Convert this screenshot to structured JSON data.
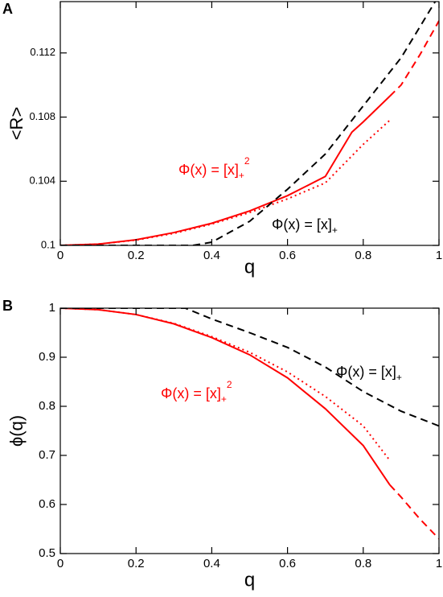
{
  "chart_data": [
    {
      "type": "line",
      "panel_label": "A",
      "x_label": "q",
      "y_label": "<R>",
      "xlim": [
        0,
        1
      ],
      "xticks": [
        0,
        0.2,
        0.4,
        0.6,
        0.8,
        1
      ],
      "ylim": [
        0.1,
        0.1152
      ],
      "yticks": [
        0.1,
        0.104,
        0.108,
        0.112
      ],
      "series": [
        {
          "color": "#ff0000",
          "style": "solid",
          "x": [
            0,
            0.1,
            0.2,
            0.3,
            0.4,
            0.5,
            0.6,
            0.7,
            0.77,
            0.8,
            0.87
          ],
          "values": [
            0.1,
            0.10008,
            0.10035,
            0.1008,
            0.10138,
            0.10215,
            0.1031,
            0.1043,
            0.10706,
            0.1077,
            0.1093
          ]
        },
        {
          "color": "#ff0000",
          "style": "dashed",
          "x": [
            0.87,
            0.9,
            0.95,
            1
          ],
          "values": [
            0.1093,
            0.11,
            0.1119,
            0.114
          ]
        },
        {
          "color": "#ff0000",
          "style": "dotted",
          "x": [
            0,
            0.1,
            0.2,
            0.3,
            0.4,
            0.5,
            0.6,
            0.7,
            0.8,
            0.87
          ],
          "values": [
            0.1,
            0.10008,
            0.10033,
            0.10075,
            0.10133,
            0.10205,
            0.1029,
            0.1039,
            0.1063,
            0.1078
          ]
        },
        {
          "color": "#000000",
          "style": "dashed",
          "x": [
            0,
            0.35,
            0.4,
            0.5,
            0.6,
            0.7,
            0.8,
            0.9,
            0.99
          ],
          "values": [
            0.1,
            0.1,
            0.1002,
            0.1015,
            0.1035,
            0.1057,
            0.1087,
            0.1117,
            0.1152
          ]
        }
      ],
      "annotations": [
        {
          "text": "Φ(x) = [x]",
          "sub": "+",
          "sup": "2",
          "color": "#ff0000"
        },
        {
          "text": "Φ(x) = [x]",
          "sub": "+",
          "color": "#000000"
        }
      ]
    },
    {
      "type": "line",
      "panel_label": "B",
      "x_label": "q",
      "y_label": "ϕ(q)",
      "xlim": [
        0,
        1
      ],
      "xticks": [
        0,
        0.2,
        0.4,
        0.6,
        0.8,
        1
      ],
      "ylim": [
        0.5,
        1
      ],
      "yticks": [
        0.5,
        0.6,
        0.7,
        0.8,
        0.9,
        1
      ],
      "series": [
        {
          "color": "#ff0000",
          "style": "solid",
          "x": [
            0,
            0.1,
            0.2,
            0.3,
            0.4,
            0.5,
            0.6,
            0.7,
            0.8,
            0.87
          ],
          "values": [
            1,
            0.997,
            0.987,
            0.968,
            0.94,
            0.905,
            0.858,
            0.795,
            0.72,
            0.64
          ]
        },
        {
          "color": "#ff0000",
          "style": "dashed",
          "x": [
            0.87,
            0.9,
            0.95,
            1
          ],
          "values": [
            0.64,
            0.615,
            0.57,
            0.53
          ]
        },
        {
          "color": "#ff0000",
          "style": "dotted",
          "x": [
            0,
            0.1,
            0.2,
            0.3,
            0.4,
            0.5,
            0.6,
            0.7,
            0.8,
            0.87
          ],
          "values": [
            1,
            0.997,
            0.987,
            0.969,
            0.942,
            0.91,
            0.87,
            0.82,
            0.76,
            0.69
          ]
        },
        {
          "color": "#000000",
          "style": "dashed",
          "x": [
            0,
            0.33,
            0.4,
            0.5,
            0.6,
            0.7,
            0.8,
            0.9,
            1
          ],
          "values": [
            1,
            1,
            0.978,
            0.95,
            0.92,
            0.88,
            0.83,
            0.79,
            0.76
          ]
        }
      ],
      "annotations": [
        {
          "text": "Φ(x) = [x]",
          "sub": "+",
          "sup": "2",
          "color": "#ff0000"
        },
        {
          "text": "Φ(x) = [x]",
          "sub": "+",
          "color": "#000000"
        }
      ]
    }
  ]
}
